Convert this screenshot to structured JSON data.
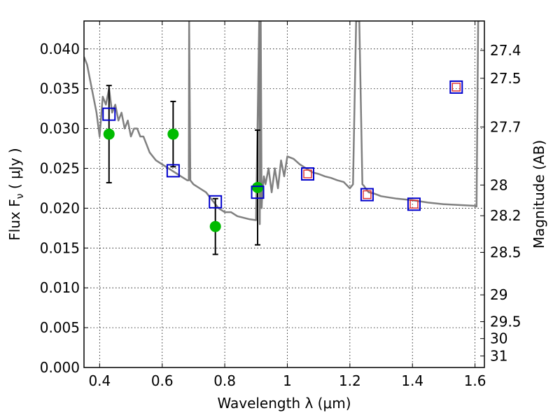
{
  "chart_data": {
    "type": "scatter",
    "xlabel": "Wavelength  λ (μm)",
    "ylabel": "Flux  F",
    "ylabel_sub": "ν",
    "ylabel_unit": "  ( μJy )",
    "y2label": "Magnitude (AB)",
    "xlim": [
      0.35,
      1.63
    ],
    "ylim": [
      0.0,
      0.0435
    ],
    "grid": true,
    "x_ticks": [
      0.4,
      0.6,
      0.8,
      1.0,
      1.2,
      1.4,
      1.6
    ],
    "x_tick_labels": [
      "0.4",
      "0.6",
      "0.8",
      "1",
      "1.2",
      "1.4",
      "1.6"
    ],
    "y_ticks": [
      0.0,
      0.005,
      0.01,
      0.015,
      0.02,
      0.025,
      0.03,
      0.035,
      0.04
    ],
    "y_tick_labels": [
      "0.000",
      "0.005",
      "0.010",
      "0.015",
      "0.020",
      "0.025",
      "0.030",
      "0.035",
      "0.040"
    ],
    "y2_ticks": [
      {
        "mag": 27.4,
        "label": "27.4"
      },
      {
        "mag": 27.5,
        "label": "27.5"
      },
      {
        "mag": 27.7,
        "label": "27.7"
      },
      {
        "mag": 28.0,
        "label": "28"
      },
      {
        "mag": 28.2,
        "label": "28.2"
      },
      {
        "mag": 28.5,
        "label": "28.5"
      },
      {
        "mag": 29.0,
        "label": "29"
      },
      {
        "mag": 29.5,
        "label": "29.5"
      },
      {
        "mag": 30.0,
        "label": "30"
      },
      {
        "mag": 31.0,
        "label": "31"
      }
    ],
    "series": [
      {
        "kind": "line",
        "color": "#808080",
        "x": [
          0.35,
          0.36,
          0.37,
          0.38,
          0.39,
          0.4,
          0.41,
          0.42,
          0.43,
          0.44,
          0.45,
          0.46,
          0.47,
          0.48,
          0.49,
          0.5,
          0.51,
          0.52,
          0.53,
          0.54,
          0.55,
          0.56,
          0.58,
          0.6,
          0.62,
          0.64,
          0.66,
          0.68,
          0.685,
          0.686,
          0.69,
          0.7,
          0.72,
          0.74,
          0.76,
          0.78,
          0.8,
          0.82,
          0.84,
          0.86,
          0.88,
          0.9,
          0.91,
          0.912,
          0.915,
          0.918,
          0.92,
          0.925,
          0.93,
          0.94,
          0.95,
          0.96,
          0.97,
          0.98,
          0.99,
          1.0,
          1.02,
          1.04,
          1.06,
          1.08,
          1.1,
          1.12,
          1.14,
          1.16,
          1.18,
          1.2,
          1.21,
          1.22,
          1.225,
          1.23,
          1.24,
          1.245,
          1.25,
          1.26,
          1.28,
          1.3,
          1.35,
          1.4,
          1.45,
          1.5,
          1.55,
          1.6,
          1.605,
          1.61,
          1.615
        ],
        "y": [
          0.039,
          0.038,
          0.036,
          0.034,
          0.032,
          0.029,
          0.034,
          0.033,
          0.035,
          0.032,
          0.033,
          0.031,
          0.032,
          0.03,
          0.031,
          0.029,
          0.03,
          0.03,
          0.029,
          0.029,
          0.028,
          0.027,
          0.026,
          0.0255,
          0.025,
          0.0245,
          0.024,
          0.0235,
          0.0235,
          0.0435,
          0.0235,
          0.023,
          0.0225,
          0.022,
          0.021,
          0.02,
          0.0195,
          0.0195,
          0.019,
          0.0188,
          0.0186,
          0.0185,
          0.0435,
          0.018,
          0.0435,
          0.02,
          0.022,
          0.024,
          0.023,
          0.025,
          0.022,
          0.025,
          0.0225,
          0.026,
          0.024,
          0.0265,
          0.0262,
          0.0255,
          0.025,
          0.0245,
          0.0243,
          0.024,
          0.0238,
          0.0235,
          0.0233,
          0.0225,
          0.023,
          0.0435,
          0.0435,
          0.0435,
          0.023,
          0.0228,
          0.0225,
          0.022,
          0.0218,
          0.0215,
          0.0212,
          0.021,
          0.0207,
          0.0205,
          0.0204,
          0.0203,
          0.0202,
          0.0435,
          0.0435
        ]
      },
      {
        "kind": "points",
        "marker": "circle",
        "color": "#00bb00",
        "x": [
          0.43,
          0.635,
          0.77,
          0.905
        ],
        "y": [
          0.0293,
          0.0293,
          0.0177,
          0.0226
        ],
        "yerr": [
          0.0061,
          0.0041,
          0.0035,
          0.0072
        ]
      },
      {
        "kind": "points",
        "marker": "square",
        "color": "#0000cc",
        "x": [
          0.43,
          0.635,
          0.77,
          0.905,
          1.065,
          1.255,
          1.405,
          1.54
        ],
        "y": [
          0.0318,
          0.0247,
          0.0208,
          0.022,
          0.0243,
          0.0217,
          0.0205,
          0.0352
        ]
      },
      {
        "kind": "points",
        "marker": "square",
        "color": "#dd3333",
        "x": [
          1.065,
          1.255,
          1.405,
          1.54
        ],
        "y": [
          0.0243,
          0.0217,
          0.0205,
          0.0352
        ]
      }
    ]
  }
}
